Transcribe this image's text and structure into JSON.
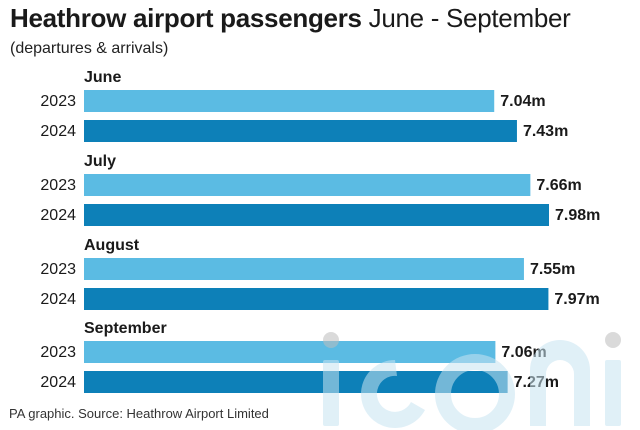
{
  "title_bold": "Heathrow airport passengers",
  "title_light": "June - September",
  "subtitle": "(departures & arrivals)",
  "footer": "PA graphic. Source: Heathrow Airport Limited",
  "colors": {
    "bar_2023": "#5bbbe3",
    "bar_2024": "#0d80b8"
  },
  "chart_data": {
    "type": "bar",
    "orientation": "horizontal",
    "title": "Heathrow airport passengers June - September",
    "subtitle": "(departures & arrivals)",
    "categories": [
      "June",
      "July",
      "August",
      "September"
    ],
    "series": [
      {
        "name": "2023",
        "values": [
          7.04,
          7.66,
          7.55,
          7.06
        ],
        "labels": [
          "7.04m",
          "7.66m",
          "7.55m",
          "7.06m"
        ]
      },
      {
        "name": "2024",
        "values": [
          7.43,
          7.98,
          7.97,
          7.27
        ],
        "labels": [
          "7.43m",
          "7.98m",
          "7.97m",
          "7.27m"
        ]
      }
    ],
    "grid": false,
    "legend": "none"
  }
}
